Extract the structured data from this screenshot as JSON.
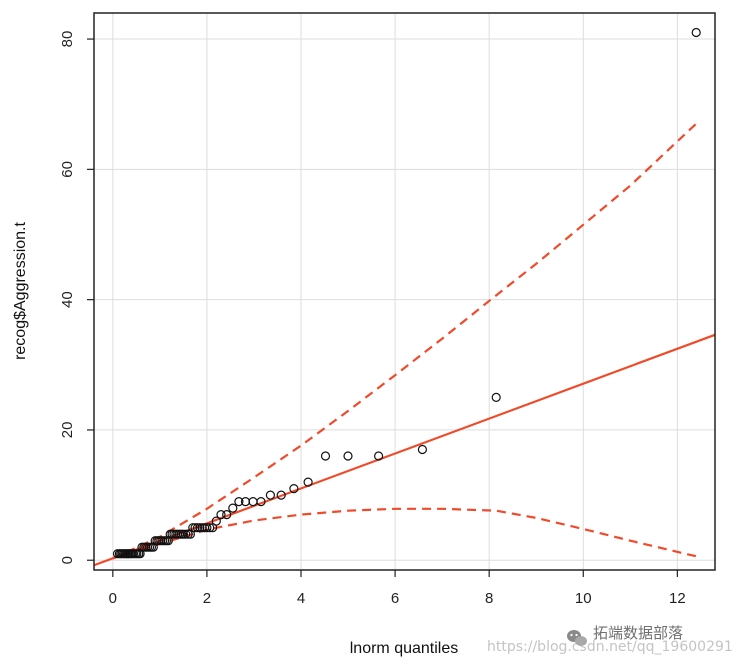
{
  "chart_data": {
    "type": "scatter",
    "title": "",
    "xlabel": "lnorm quantiles",
    "ylabel": "recog$Aggression.t",
    "xlim": [
      -0.4,
      12.8
    ],
    "ylim": [
      -1.5,
      84
    ],
    "x_ticks": [
      0,
      2,
      4,
      6,
      8,
      10,
      12
    ],
    "y_ticks": [
      0,
      20,
      40,
      60,
      80
    ],
    "grid": true,
    "points": {
      "x": [
        0.1,
        0.14,
        0.17,
        0.2,
        0.23,
        0.26,
        0.29,
        0.32,
        0.35,
        0.38,
        0.41,
        0.44,
        0.48,
        0.51,
        0.55,
        0.58,
        0.62,
        0.66,
        0.7,
        0.74,
        0.78,
        0.82,
        0.86,
        0.9,
        0.94,
        0.98,
        1.02,
        1.06,
        1.1,
        1.14,
        1.18,
        1.22,
        1.26,
        1.3,
        1.34,
        1.38,
        1.42,
        1.46,
        1.5,
        1.55,
        1.6,
        1.65,
        1.7,
        1.75,
        1.8,
        1.85,
        1.9,
        1.95,
        2.0,
        2.06,
        2.12,
        2.2,
        2.3,
        2.42,
        2.55,
        2.68,
        2.82,
        2.98,
        3.15,
        3.35,
        3.58,
        3.85,
        4.15,
        4.52,
        5.0,
        5.65,
        6.58,
        8.15,
        12.4
      ],
      "y": [
        1,
        1,
        1,
        1,
        1,
        1,
        1,
        1,
        1,
        1,
        1,
        1,
        1,
        1,
        1,
        1,
        2,
        2,
        2,
        2,
        2,
        2,
        2,
        3,
        3,
        3,
        3,
        3,
        3,
        3,
        3,
        4,
        4,
        4,
        4,
        4,
        4,
        4,
        4,
        4,
        4,
        4,
        5,
        5,
        5,
        5,
        5,
        5,
        5,
        5,
        5,
        6,
        7,
        7,
        8,
        9,
        9,
        9,
        9,
        10,
        10,
        11,
        12,
        16,
        16,
        16,
        17,
        25,
        81
      ]
    },
    "reference_line": {
      "intercept": 0.3,
      "slope": 2.68,
      "style": "solid"
    },
    "envelope_upper": {
      "x": [
        0,
        1,
        2,
        3,
        4,
        5,
        6,
        7,
        8,
        9,
        10,
        11,
        12.4
      ],
      "y": [
        0.3,
        3.6,
        7.9,
        12.7,
        17.6,
        22.9,
        28.4,
        34.0,
        39.8,
        45.5,
        51.5,
        57.5,
        67.0
      ],
      "style": "dashed"
    },
    "envelope_lower": {
      "x": [
        0,
        1,
        2,
        3,
        4,
        5,
        6,
        7,
        8.15,
        9,
        10,
        11,
        12.4
      ],
      "y": [
        0.3,
        2.5,
        4.7,
        6.1,
        7.0,
        7.6,
        7.9,
        7.9,
        7.6,
        6.5,
        4.8,
        3.0,
        0.6
      ],
      "style": "dashed"
    },
    "colors": {
      "points": "#111111",
      "lines": "#f04a2a",
      "grid": "#dddddd",
      "frame": "#222222"
    }
  },
  "watermark": {
    "url": "https://blog.csdn.net/qq_19600291",
    "name": "拓端数据部落",
    "icon": "wechat-icon"
  }
}
